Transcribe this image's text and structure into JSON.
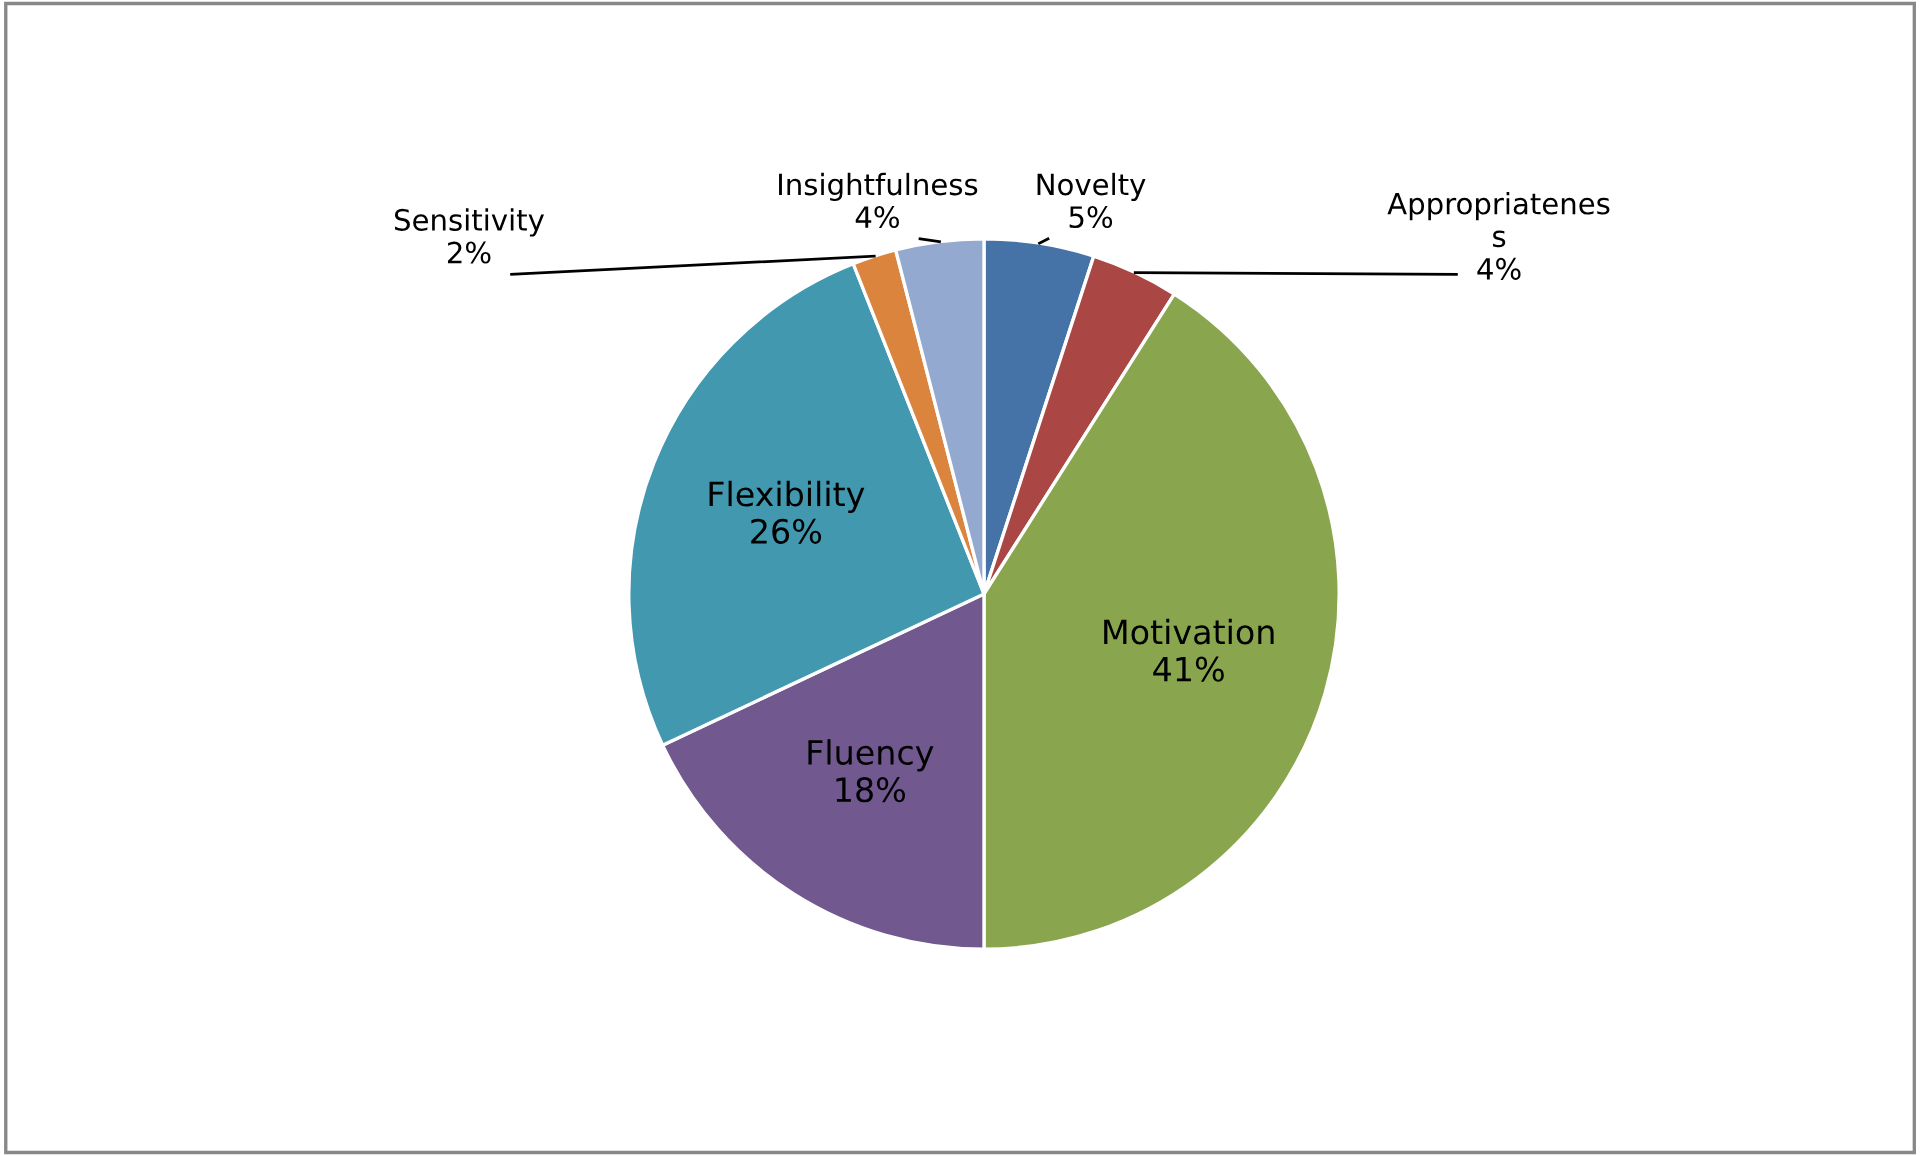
{
  "chart_data": {
    "type": "pie",
    "categories": [
      "Novelty",
      "Appropriatenes\ns",
      "Motivation",
      "Fluency",
      "Flexibility",
      "Sensitivity",
      "Insightfulness"
    ],
    "values": [
      5,
      4,
      41,
      18,
      26,
      2,
      4
    ],
    "value_labels": [
      "5%",
      "4%",
      "41%",
      "18%",
      "26%",
      "2%",
      "4%"
    ],
    "colors": [
      "#4572a7",
      "#aa4643",
      "#89a54e",
      "#71588f",
      "#4198af",
      "#db843d",
      "#93a9cf"
    ],
    "legend": false
  }
}
